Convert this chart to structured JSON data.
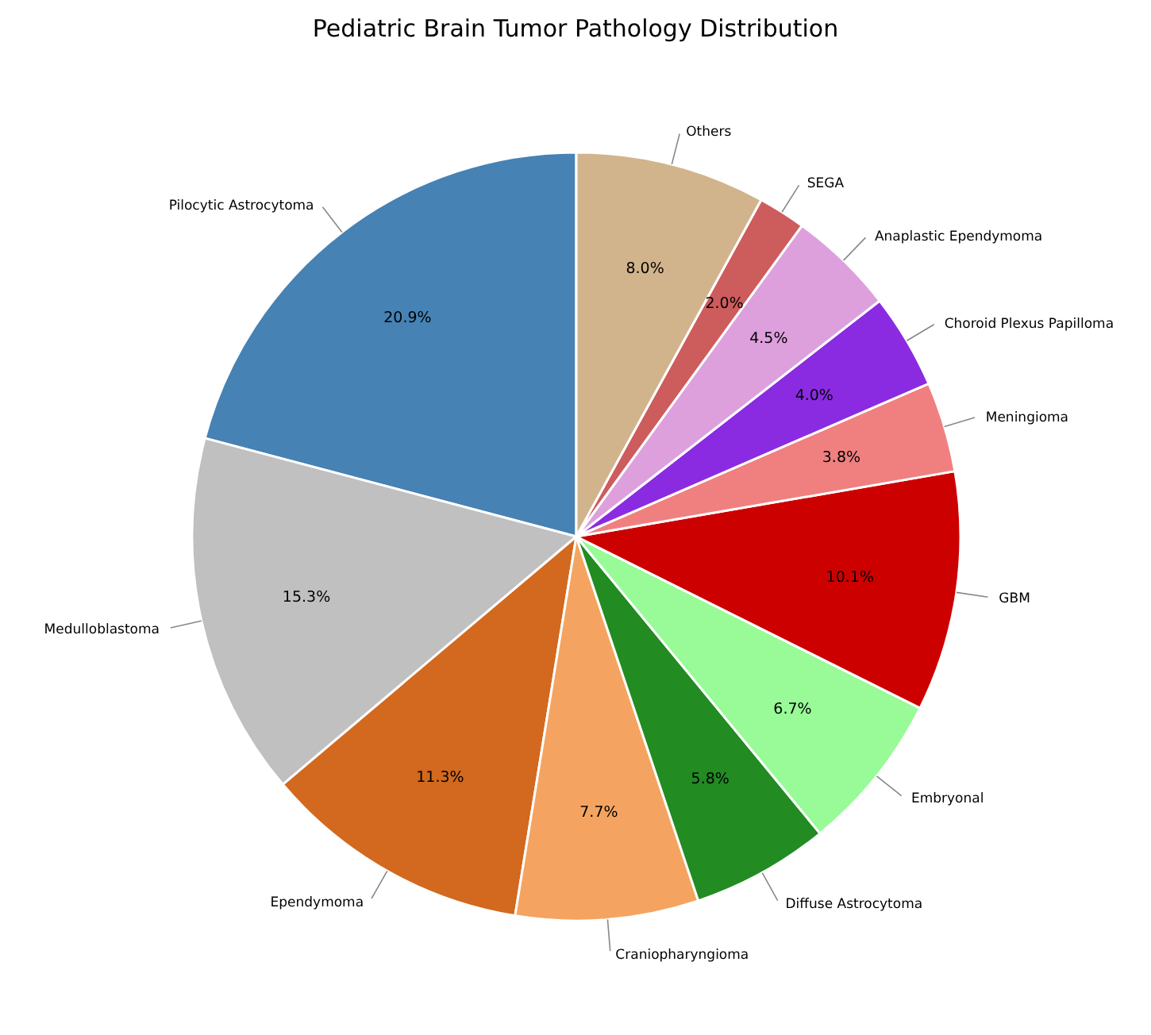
{
  "chart_data": {
    "type": "pie",
    "title": "Pediatric Brain Tumor Pathology Distribution",
    "categories": [
      "Pilocytic Astrocytoma",
      "Medulloblastoma",
      "Ependymoma",
      "Craniopharyngioma",
      "Diffuse Astrocytoma",
      "Embryonal",
      "GBM",
      "Meningioma",
      "Choroid Plexus Papilloma",
      "Anaplastic Ependymoma",
      "SEGA",
      "Others"
    ],
    "values": [
      20.9,
      15.3,
      11.3,
      7.7,
      5.8,
      6.7,
      10.1,
      3.8,
      4.0,
      4.5,
      2.0,
      8.0
    ],
    "colors": [
      "#4682b4",
      "#c0c0c0",
      "#d2691e",
      "#f4a460",
      "#228b22",
      "#98fb98",
      "#cd0000",
      "#f08080",
      "#8a2be2",
      "#dda0dd",
      "#cd5c5c",
      "#d2b48c"
    ],
    "value_labels": [
      "20.9%",
      "15.3%",
      "11.3%",
      "7.7%",
      "5.8%",
      "6.7%",
      "10.1%",
      "3.8%",
      "4.0%",
      "4.5%",
      "2.0%",
      "8.0%"
    ]
  }
}
